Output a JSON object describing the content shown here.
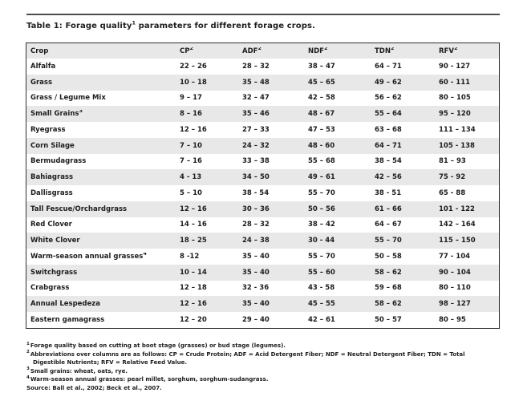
{
  "title": {
    "prefix": "Table 1: Forage quality",
    "sup": "1",
    "suffix": " parameters for different forage crops."
  },
  "table": {
    "columns": [
      {
        "label": "Crop",
        "sup": ""
      },
      {
        "label": "CP",
        "sup": "2"
      },
      {
        "label": "ADF",
        "sup": "2"
      },
      {
        "label": "NDF",
        "sup": "2"
      },
      {
        "label": "TDN",
        "sup": "2"
      },
      {
        "label": "RFV",
        "sup": "2"
      }
    ],
    "rows": [
      {
        "crop": "Alfalfa",
        "sup": "",
        "values": [
          "22 – 26",
          "28 – 32",
          "38 – 47",
          "64 – 71",
          "90 - 127"
        ]
      },
      {
        "crop": "Grass",
        "sup": "",
        "values": [
          "10 – 18",
          "35 – 48",
          "45 – 65",
          "49 – 62",
          "60 - 111"
        ]
      },
      {
        "crop": "Grass / Legume Mix",
        "sup": "",
        "values": [
          "9 – 17",
          "32 – 47",
          "42 – 58",
          "56 – 62",
          "80 – 105"
        ]
      },
      {
        "crop": "Small Grains",
        "sup": "3",
        "values": [
          "8 – 16",
          "35 – 46",
          "48 - 67",
          "55 – 64",
          "95 – 120"
        ]
      },
      {
        "crop": "Ryegrass",
        "sup": "",
        "values": [
          "12 – 16",
          "27 – 33",
          "47 – 53",
          "63 – 68",
          "111 – 134"
        ]
      },
      {
        "crop": "Corn Silage",
        "sup": "",
        "values": [
          "7 – 10",
          "24 – 32",
          "48 - 60",
          "64 – 71",
          "105 - 138"
        ]
      },
      {
        "crop": "Bermudagrass",
        "sup": "",
        "values": [
          "7 – 16",
          "33 – 38",
          "55 – 68",
          "38 – 54",
          "81 – 93"
        ]
      },
      {
        "crop": "Bahiagrass",
        "sup": "",
        "values": [
          "4 - 13",
          "34 – 50",
          "49 – 61",
          "42 – 56",
          "75 - 92"
        ]
      },
      {
        "crop": "Dallisgrass",
        "sup": "",
        "values": [
          "5 – 10",
          "38 - 54",
          "55 – 70",
          "38 - 51",
          "65 - 88"
        ]
      },
      {
        "crop": "Tall Fescue/Orchardgrass",
        "sup": "",
        "values": [
          "12 – 16",
          "30 – 36",
          "50 – 56",
          "61 – 66",
          "101 - 122"
        ]
      },
      {
        "crop": "Red Clover",
        "sup": "",
        "values": [
          "14 – 16",
          "28 – 32",
          "38 – 42",
          "64 – 67",
          "142 – 164"
        ]
      },
      {
        "crop": "White Clover",
        "sup": "",
        "values": [
          "18 – 25",
          "24 – 38",
          "30 - 44",
          "55 – 70",
          "115 – 150"
        ]
      },
      {
        "crop": "Warm-season annual grasses",
        "sup": "4",
        "values": [
          "8 -12",
          "35 – 40",
          "55 – 70",
          "50 – 58",
          "77 - 104"
        ]
      },
      {
        "crop": "Switchgrass",
        "sup": "",
        "values": [
          "10 – 14",
          "35 – 40",
          "55 – 60",
          "58 – 62",
          "90 – 104"
        ]
      },
      {
        "crop": "Crabgrass",
        "sup": "",
        "values": [
          "12 – 18",
          "32 - 36",
          "43 - 58",
          "59 – 68",
          "80 – 110"
        ]
      },
      {
        "crop": "Annual Lespedeza",
        "sup": "",
        "values": [
          "12 – 16",
          "35 – 40",
          "45 – 55",
          "58 – 62",
          "98 – 127"
        ]
      },
      {
        "crop": "Eastern gamagrass",
        "sup": "",
        "values": [
          "12 – 20",
          "29 – 40",
          "42 – 61",
          "50 – 57",
          "80 – 95"
        ]
      }
    ]
  },
  "footnotes": [
    {
      "sup": "1",
      "text": "Forage quality based on cutting at boot stage (grasses) or bud stage (legumes)."
    },
    {
      "sup": "2",
      "text": "Abbreviations over columns are as follows: CP = Crude Protein; ADF = Acid Detergent Fiber; NDF = Neutral Detergent Fiber; TDN = Total Digestible Nutrients; RFV = Relative Feed Value."
    },
    {
      "sup": "3",
      "text": "Small grains: wheat, oats, rye."
    },
    {
      "sup": "4",
      "text": "Warm-season annual grasses: pearl millet, sorghum, sorghum-sudangrass."
    }
  ],
  "source_line": "Source: Ball et al., 2002; Beck et al., 2007.",
  "colors": {
    "stripe_gray": "#e8e8e8",
    "text": "#1d1d1d",
    "rule": "#4d4d4d",
    "table_border": "#2f2f2f"
  }
}
